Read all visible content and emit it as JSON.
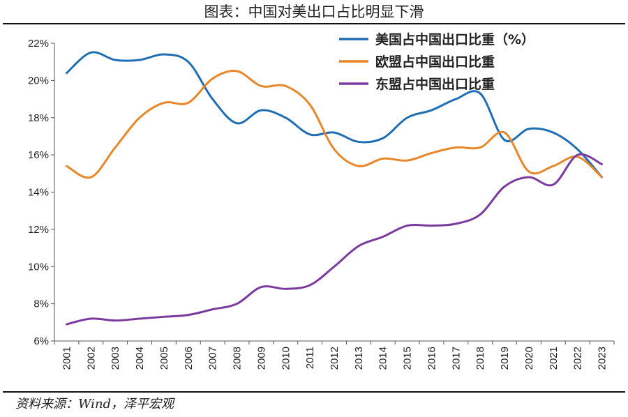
{
  "title": "图表：中国对美出口占比明显下滑",
  "source": "资料来源：Wind，泽平宏观",
  "chart_data": {
    "type": "line",
    "x": [
      "2001",
      "2002",
      "2003",
      "2004",
      "2005",
      "2006",
      "2007",
      "2008",
      "2009",
      "2010",
      "2011",
      "2012",
      "2013",
      "2014",
      "2015",
      "2016",
      "2017",
      "2018",
      "2019",
      "2020",
      "2021",
      "2022",
      "2023"
    ],
    "ylim": [
      6,
      22
    ],
    "yticks": [
      6,
      8,
      10,
      12,
      14,
      16,
      18,
      20,
      22
    ],
    "ytick_labels": [
      "6%",
      "8%",
      "10%",
      "12%",
      "14%",
      "16%",
      "18%",
      "20%",
      "22%"
    ],
    "legend_position": "top-right",
    "series": [
      {
        "name": "美国占中国出口比重（%）",
        "color": "#1f6eb4",
        "values": [
          20.4,
          21.5,
          21.1,
          21.1,
          21.4,
          21.0,
          19.0,
          17.7,
          18.4,
          18.0,
          17.1,
          17.2,
          16.7,
          16.9,
          18.0,
          18.4,
          19.0,
          19.3,
          16.8,
          17.4,
          17.2,
          16.3,
          14.8
        ]
      },
      {
        "name": "欧盟占中国出口比重",
        "color": "#e8862a",
        "values": [
          15.4,
          14.8,
          16.4,
          18.0,
          18.8,
          18.8,
          20.1,
          20.5,
          19.7,
          19.7,
          18.7,
          16.3,
          15.4,
          15.8,
          15.7,
          16.1,
          16.4,
          16.4,
          17.2,
          15.1,
          15.4,
          15.9,
          14.8
        ]
      },
      {
        "name": "东盟占中国出口比重",
        "color": "#7a3a9e",
        "values": [
          6.9,
          7.2,
          7.1,
          7.2,
          7.3,
          7.4,
          7.7,
          8.0,
          8.9,
          8.8,
          9.0,
          10.0,
          11.1,
          11.6,
          12.2,
          12.2,
          12.3,
          12.8,
          14.3,
          14.8,
          14.4,
          16.0,
          15.5
        ]
      }
    ]
  }
}
